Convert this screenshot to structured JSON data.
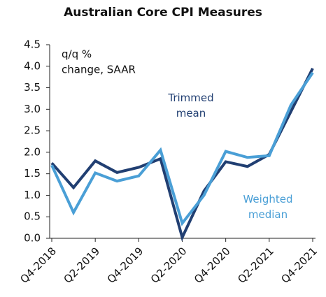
{
  "chart_data": {
    "type": "line",
    "title": "Australian Core CPI Measures",
    "categories": [
      "Q4-2018",
      null,
      "Q2-2019",
      null,
      "Q4-2019",
      null,
      "Q2-2020",
      null,
      "Q4-2020",
      null,
      "Q2-2021",
      null,
      "Q4-2021"
    ],
    "series": [
      {
        "name": "Trimmed mean",
        "color": "#213f72",
        "values": [
          1.75,
          1.18,
          1.8,
          1.53,
          1.65,
          1.85,
          0.02,
          1.1,
          1.78,
          1.67,
          1.95,
          2.95,
          3.95
        ]
      },
      {
        "name": "Weighted median",
        "color": "#4a9fd6",
        "values": [
          1.7,
          0.6,
          1.52,
          1.33,
          1.45,
          2.05,
          0.35,
          1.0,
          2.02,
          1.88,
          1.92,
          3.1,
          3.85
        ]
      }
    ],
    "annotations": [
      [
        "q/q %",
        "change, SAAR"
      ]
    ],
    "ylim": [
      0,
      4.5
    ],
    "yticks": [
      {
        "value": 0,
        "label": "0.0"
      },
      0.5,
      {
        "value": 1,
        "label": "1.0"
      },
      1.5,
      {
        "value": 2,
        "label": "2.0"
      },
      2.5,
      {
        "value": 3,
        "label": "3.0"
      },
      3.5,
      {
        "value": 4,
        "label": "4.0"
      },
      4.5
    ],
    "grid": false
  }
}
